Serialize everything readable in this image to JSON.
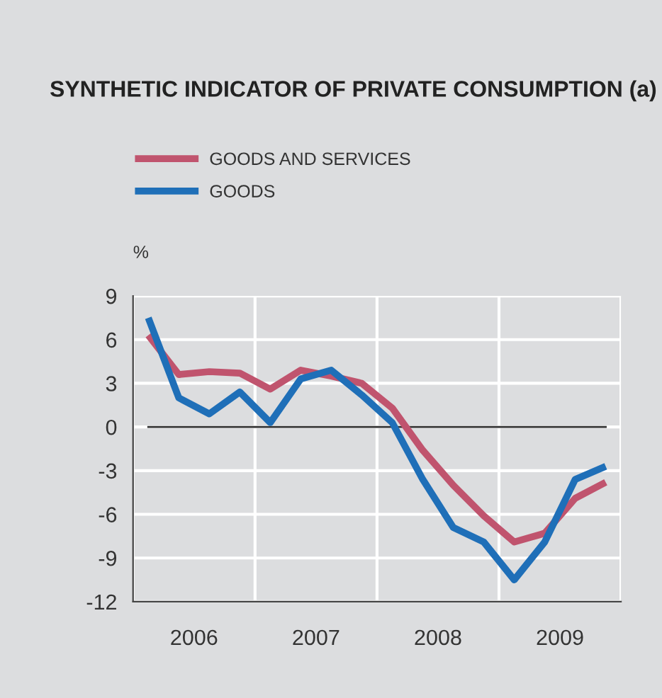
{
  "chart_data": {
    "type": "line",
    "title": "SYNTHETIC INDICATOR OF PRIVATE CONSUMPTION (a)",
    "ylabel": "%",
    "x": [
      2006.125,
      2006.375,
      2006.625,
      2006.875,
      2007.125,
      2007.375,
      2007.625,
      2007.875,
      2008.125,
      2008.375,
      2008.625,
      2008.875,
      2009.125,
      2009.375,
      2009.625,
      2009.875
    ],
    "series": [
      {
        "name": "GOODS AND SERVICES",
        "color": "#c0546e",
        "values": [
          6.3,
          3.6,
          3.8,
          3.7,
          2.6,
          3.9,
          3.5,
          3.0,
          1.3,
          -1.6,
          -4.0,
          -6.1,
          -7.9,
          -7.3,
          -4.9,
          -3.8
        ]
      },
      {
        "name": "GOODS",
        "color": "#1f6fb8",
        "values": [
          7.5,
          2.0,
          0.9,
          2.4,
          0.3,
          3.3,
          3.9,
          2.2,
          0.3,
          -3.6,
          -6.9,
          -7.9,
          -10.5,
          -7.9,
          -3.6,
          -2.7
        ]
      }
    ],
    "xlim": [
      2006,
      2010
    ],
    "xticks": [
      {
        "value": 2006,
        "label": null
      },
      {
        "value": 2006.5,
        "label": "2006"
      },
      {
        "value": 2007,
        "label": null
      },
      {
        "value": 2007.5,
        "label": "2007"
      },
      {
        "value": 2008,
        "label": null
      },
      {
        "value": 2008.5,
        "label": "2008"
      },
      {
        "value": 2009,
        "label": null
      },
      {
        "value": 2009.5,
        "label": "2009"
      },
      {
        "value": 2010,
        "label": null
      }
    ],
    "ylim": [
      -12,
      9
    ],
    "yticks": [
      -12,
      -9,
      -6,
      -3,
      0,
      3,
      6,
      9
    ],
    "ref_lines": [
      {
        "axis": "y",
        "value": 0,
        "color": "#333333"
      }
    ],
    "grid": true,
    "legend": "top left",
    "marker": "none",
    "line_style": "solid"
  }
}
